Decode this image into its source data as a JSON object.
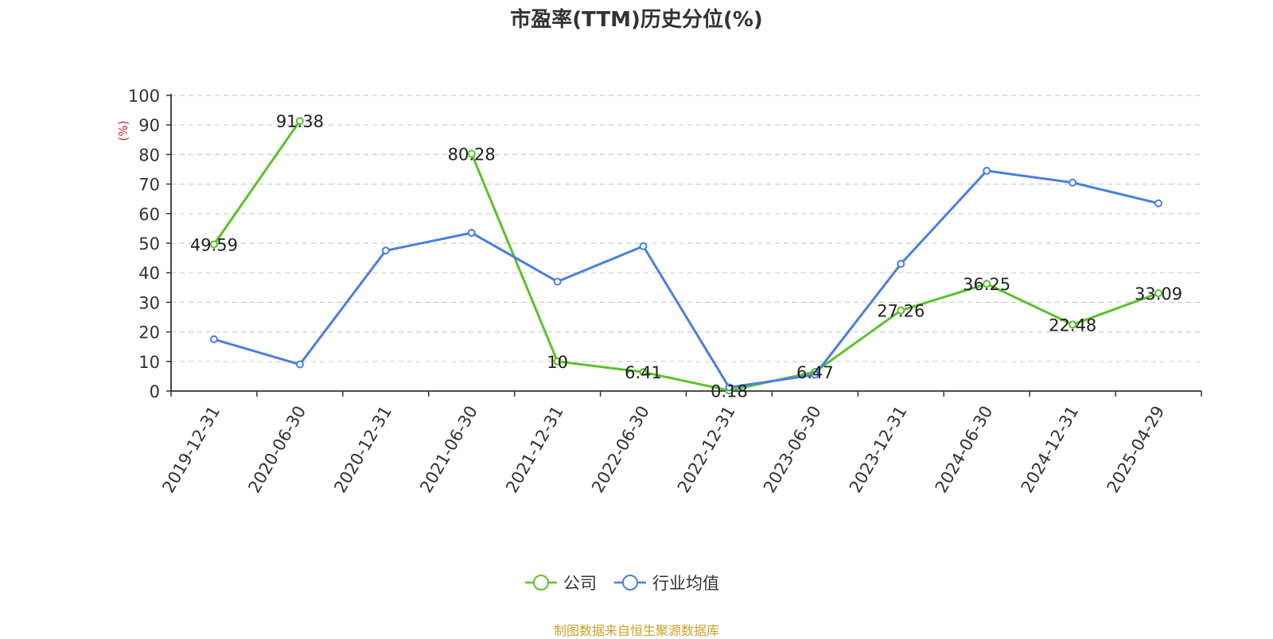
{
  "chart_data": {
    "type": "line",
    "title": "市盈率(TTM)历史分位(%)",
    "ylabel": "(%)",
    "xlabel": "",
    "ylim": [
      0,
      100
    ],
    "yticks": [
      0,
      10,
      20,
      30,
      40,
      50,
      60,
      70,
      80,
      90,
      100
    ],
    "grid": true,
    "legend_position": "bottom",
    "categories": [
      "2019-12-31",
      "2020-06-30",
      "2020-12-31",
      "2021-06-30",
      "2021-12-31",
      "2022-06-30",
      "2022-12-31",
      "2023-06-30",
      "2023-12-31",
      "2024-06-30",
      "2024-12-31",
      "2025-04-29"
    ],
    "series": [
      {
        "name": "公司",
        "color": "#5bc12a",
        "show_labels": true,
        "values": [
          49.59,
          91.38,
          null,
          80.28,
          10,
          6.41,
          0.18,
          6.47,
          27.26,
          36.25,
          22.48,
          33.09
        ],
        "value_labels": [
          "49.59",
          "91.38",
          "",
          "80.28",
          "10",
          "6.41",
          "0.18",
          "6.47",
          "27.26",
          "36.25",
          "22.48",
          "33.09"
        ]
      },
      {
        "name": "行业均值",
        "color": "#4a7fdc",
        "show_labels": false,
        "values": [
          17.5,
          9.0,
          47.5,
          53.5,
          37.0,
          49.0,
          1.2,
          5.5,
          43.0,
          74.5,
          70.5,
          63.5
        ]
      }
    ]
  },
  "source": "制图数据来自恒生聚源数据库"
}
